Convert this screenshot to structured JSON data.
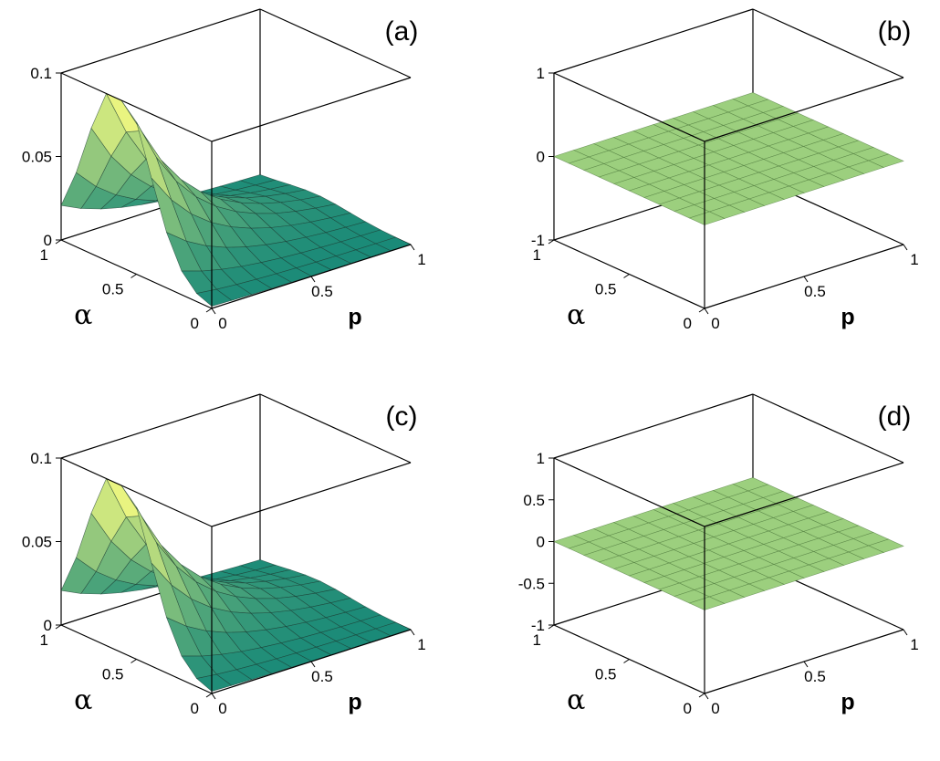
{
  "chart_data": [
    {
      "type": "surface3d",
      "panel_label": "(a)",
      "x_axis": {
        "label": "p",
        "range": [
          0,
          1
        ],
        "ticks": [
          "0",
          "0.5",
          "1"
        ]
      },
      "y_axis": {
        "label": "α",
        "range": [
          0,
          1
        ],
        "ticks": [
          "0",
          "0.5",
          "1"
        ]
      },
      "z_axis": {
        "label": "",
        "range": [
          0,
          0.1
        ],
        "ticks": [
          "0",
          "0.05",
          "0.1"
        ]
      },
      "grid_resolution": 10,
      "surface_peak": {
        "p": 0,
        "alpha": 0.65,
        "z": 0.112
      },
      "colors": {
        "low": "#1a8a78",
        "high": "#f0f880",
        "mesh": "#1a3a30",
        "box": "#000000"
      }
    },
    {
      "type": "surface3d",
      "panel_label": "(b)",
      "x_axis": {
        "label": "p",
        "range": [
          0,
          1
        ],
        "ticks": [
          "0",
          "0.5",
          "1"
        ]
      },
      "y_axis": {
        "label": "α",
        "range": [
          0,
          1
        ],
        "ticks": [
          "0",
          "0.5",
          "1"
        ]
      },
      "z_axis": {
        "label": "",
        "range": [
          -1,
          1
        ],
        "ticks": [
          "-1",
          "0",
          "1"
        ]
      },
      "grid_resolution": 10,
      "constant_value": 0,
      "colors": {
        "surface": "#9ccf7e",
        "mesh": "#4f7a3c",
        "box": "#000000"
      }
    },
    {
      "type": "surface3d",
      "panel_label": "(c)",
      "x_axis": {
        "label": "p",
        "range": [
          0,
          1
        ],
        "ticks": [
          "0",
          "0.5",
          "1"
        ]
      },
      "y_axis": {
        "label": "α",
        "range": [
          0,
          1
        ],
        "ticks": [
          "0",
          "0.5",
          "1"
        ]
      },
      "z_axis": {
        "label": "",
        "range": [
          0,
          0.1
        ],
        "ticks": [
          "0",
          "0.05",
          "0.1"
        ]
      },
      "grid_resolution": 10,
      "surface_peak": {
        "p": 0,
        "alpha": 0.65,
        "z": 0.112
      },
      "colors": {
        "low": "#1a8a78",
        "high": "#f0f880",
        "mesh": "#1a3a30",
        "box": "#000000"
      }
    },
    {
      "type": "surface3d",
      "panel_label": "(d)",
      "x_axis": {
        "label": "p",
        "range": [
          0,
          1
        ],
        "ticks": [
          "0",
          "0.5",
          "1"
        ]
      },
      "y_axis": {
        "label": "α",
        "range": [
          0,
          1
        ],
        "ticks": [
          "0",
          "0.5",
          "1"
        ]
      },
      "z_axis": {
        "label": "",
        "range": [
          -1,
          1
        ],
        "ticks": [
          "-1",
          "-0.5",
          "0",
          "0.5",
          "1"
        ]
      },
      "grid_resolution": 10,
      "constant_value": 0,
      "colors": {
        "surface": "#9ccf7e",
        "mesh": "#4f7a3c",
        "box": "#000000"
      }
    }
  ]
}
